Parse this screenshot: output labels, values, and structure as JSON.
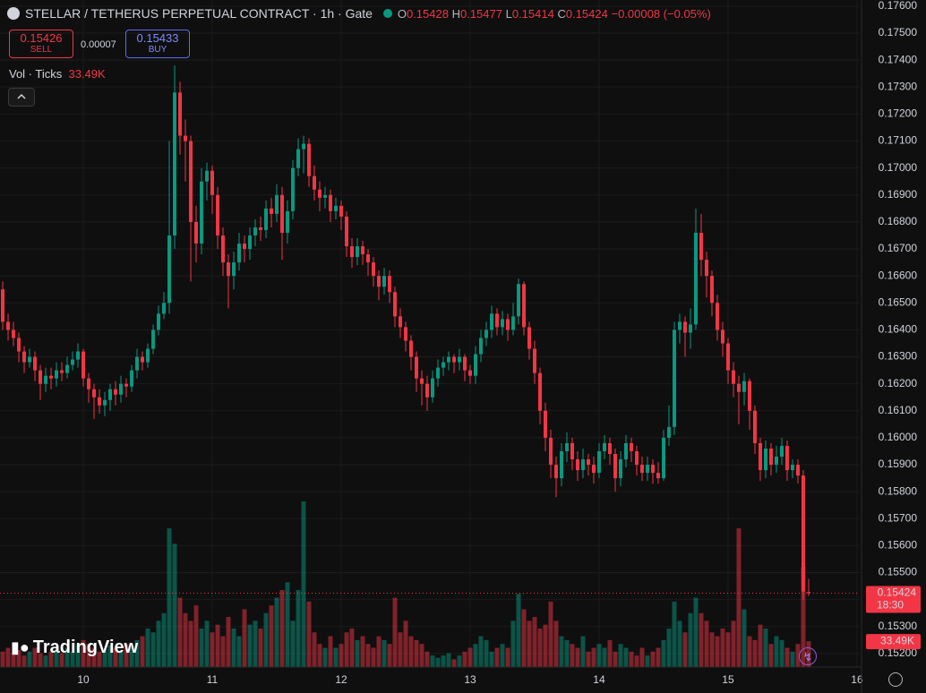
{
  "chart_data": {
    "type": "candlestick",
    "title": "STELLAR / TETHERUS PERPETUAL CONTRACT · 1h · Gate",
    "ohlc_labels": [
      "O",
      "H",
      "L",
      "C"
    ],
    "change": "−0.00008 (−0.05%)",
    "sell": {
      "price": "0.15426",
      "label": "SELL"
    },
    "spread": "0.00007",
    "buy": {
      "price": "0.15433",
      "label": "BUY"
    },
    "volume_legend": "Vol · Ticks",
    "volume_label": "33.49K",
    "countdown": "18:30",
    "logo": "TradingView",
    "up_color": "#089981",
    "down_color": "#f23645",
    "grid": true,
    "xlim": [
      9.354,
      16.021
    ],
    "xticks": [
      10,
      11,
      12,
      13,
      14,
      15,
      16
    ],
    "ylim": [
      0.1515,
      0.17623
    ],
    "yticks": [
      {
        "value": 0.152,
        "label": "0.15200"
      },
      {
        "value": 0.153,
        "label": "0.15300"
      },
      {
        "value": 0.154,
        "label": "0.15400"
      },
      {
        "value": 0.155,
        "label": "0.15500"
      },
      {
        "value": 0.156,
        "label": "0.15600"
      },
      {
        "value": 0.157,
        "label": "0.15700"
      },
      {
        "value": 0.158,
        "label": "0.15800"
      },
      {
        "value": 0.159,
        "label": "0.15900"
      },
      {
        "value": 0.16,
        "label": "0.16000"
      },
      {
        "value": 0.161,
        "label": "0.16100"
      },
      {
        "value": 0.162,
        "label": "0.16200"
      },
      {
        "value": 0.163,
        "label": "0.16300"
      },
      {
        "value": 0.164,
        "label": "0.16400"
      },
      {
        "value": 0.165,
        "label": "0.16500"
      },
      {
        "value": 0.166,
        "label": "0.16600"
      },
      {
        "value": 0.167,
        "label": "0.16700"
      },
      {
        "value": 0.168,
        "label": "0.16800"
      },
      {
        "value": 0.169,
        "label": "0.16900"
      },
      {
        "value": 0.17,
        "label": "0.17000"
      },
      {
        "value": 0.171,
        "label": "0.17100"
      },
      {
        "value": 0.172,
        "label": "0.17200"
      },
      {
        "value": 0.173,
        "label": "0.17300"
      },
      {
        "value": 0.174,
        "label": "0.17400"
      },
      {
        "value": 0.175,
        "label": "0.17500"
      },
      {
        "value": 0.176,
        "label": "0.17600"
      }
    ],
    "x": [
      9.375,
      9.4167,
      9.4583,
      9.5,
      9.5417,
      9.5833,
      9.625,
      9.6667,
      9.7083,
      9.75,
      9.7917,
      9.8333,
      9.875,
      9.9167,
      9.9583,
      10,
      10.0417,
      10.0833,
      10.125,
      10.1667,
      10.2083,
      10.25,
      10.2917,
      10.3333,
      10.375,
      10.4167,
      10.4583,
      10.5,
      10.5417,
      10.5833,
      10.625,
      10.6667,
      10.7083,
      10.75,
      10.7917,
      10.8333,
      10.875,
      10.9167,
      10.9583,
      11,
      11.0417,
      11.0833,
      11.125,
      11.1667,
      11.2083,
      11.25,
      11.2917,
      11.3333,
      11.375,
      11.4167,
      11.4583,
      11.5,
      11.5417,
      11.5833,
      11.625,
      11.6667,
      11.7083,
      11.75,
      11.7917,
      11.8333,
      11.875,
      11.9167,
      11.9583,
      12,
      12.0417,
      12.0833,
      12.125,
      12.1667,
      12.2083,
      12.25,
      12.2917,
      12.3333,
      12.375,
      12.4167,
      12.4583,
      12.5,
      12.5417,
      12.5833,
      12.625,
      12.6667,
      12.7083,
      12.75,
      12.7917,
      12.8333,
      12.875,
      12.9167,
      12.9583,
      13,
      13.0417,
      13.0833,
      13.125,
      13.1667,
      13.2083,
      13.25,
      13.2917,
      13.3333,
      13.375,
      13.4167,
      13.4583,
      13.5,
      13.5417,
      13.5833,
      13.625,
      13.6667,
      13.7083,
      13.75,
      13.7917,
      13.8333,
      13.875,
      13.9167,
      13.9583,
      14,
      14.0417,
      14.0833,
      14.125,
      14.1667,
      14.2083,
      14.25,
      14.2917,
      14.3333,
      14.375,
      14.4167,
      14.4583,
      14.5,
      14.5417,
      14.5833,
      14.625,
      14.6667,
      14.7083,
      14.75,
      14.7917,
      14.8333,
      14.875,
      14.9167,
      14.9583,
      15,
      15.0417,
      15.0833,
      15.125,
      15.1667,
      15.2083,
      15.25,
      15.2917,
      15.3333,
      15.375,
      15.4167,
      15.4583,
      15.5,
      15.5417,
      15.5833,
      15.625
    ],
    "open": [
      0.1655,
      0.1643,
      0.164,
      0.1637,
      0.1632,
      0.1628,
      0.163,
      0.1625,
      0.162,
      0.1623,
      0.1622,
      0.1625,
      0.1624,
      0.1627,
      0.1629,
      0.1632,
      0.1622,
      0.1618,
      0.1615,
      0.1612,
      0.1614,
      0.1618,
      0.1616,
      0.162,
      0.1619,
      0.1625,
      0.163,
      0.1628,
      0.1633,
      0.164,
      0.1646,
      0.165,
      0.1675,
      0.1728,
      0.1712,
      0.171,
      0.168,
      0.1672,
      0.1695,
      0.1699,
      0.169,
      0.1675,
      0.1665,
      0.166,
      0.1665,
      0.1672,
      0.167,
      0.1675,
      0.1678,
      0.1677,
      0.1685,
      0.1683,
      0.169,
      0.1676,
      0.1684,
      0.17,
      0.1707,
      0.1709,
      0.1697,
      0.1692,
      0.1689,
      0.169,
      0.1684,
      0.1686,
      0.1682,
      0.1671,
      0.1667,
      0.1671,
      0.1668,
      0.1665,
      0.166,
      0.1656,
      0.166,
      0.1654,
      0.1645,
      0.1641,
      0.1636,
      0.163,
      0.1622,
      0.162,
      0.1615,
      0.1622,
      0.1626,
      0.1628,
      0.163,
      0.1628,
      0.163,
      0.1625,
      0.1623,
      0.1631,
      0.1637,
      0.164,
      0.1646,
      0.1641,
      0.1644,
      0.164,
      0.1645,
      0.1657,
      0.1641,
      0.1633,
      0.1624,
      0.161,
      0.16,
      0.159,
      0.1585,
      0.1595,
      0.1598,
      0.1592,
      0.1588,
      0.1592,
      0.159,
      0.1587,
      0.1595,
      0.1598,
      0.1594,
      0.1585,
      0.1592,
      0.1598,
      0.1595,
      0.159,
      0.1587,
      0.159,
      0.1587,
      0.1585,
      0.16,
      0.1604,
      0.164,
      0.1643,
      0.1639,
      0.1642,
      0.1676,
      0.1666,
      0.166,
      0.165,
      0.164,
      0.1635,
      0.1625,
      0.162,
      0.1617,
      0.1621,
      0.161,
      0.1598,
      0.1588,
      0.1596,
      0.159,
      0.1593,
      0.1597,
      0.1588,
      0.159,
      0.1586,
      0.15428
    ],
    "high": [
      0.1658,
      0.1646,
      0.1643,
      0.1639,
      0.1634,
      0.1633,
      0.1632,
      0.1627,
      0.1626,
      0.1626,
      0.1628,
      0.1628,
      0.163,
      0.1632,
      0.1635,
      0.1633,
      0.1624,
      0.162,
      0.1618,
      0.1617,
      0.162,
      0.1621,
      0.1623,
      0.1622,
      0.1627,
      0.1633,
      0.1632,
      0.1635,
      0.1642,
      0.1649,
      0.1654,
      0.171,
      0.1738,
      0.1732,
      0.1718,
      0.1712,
      0.1686,
      0.17,
      0.1702,
      0.1701,
      0.1693,
      0.1678,
      0.1668,
      0.1669,
      0.1676,
      0.1675,
      0.1678,
      0.1681,
      0.1682,
      0.1688,
      0.1689,
      0.1694,
      0.1693,
      0.1688,
      0.1703,
      0.1711,
      0.1712,
      0.1711,
      0.1701,
      0.1695,
      0.1693,
      0.1692,
      0.1689,
      0.1688,
      0.1684,
      0.1674,
      0.1674,
      0.1673,
      0.167,
      0.1667,
      0.1662,
      0.1663,
      0.1662,
      0.1656,
      0.1648,
      0.1643,
      0.1638,
      0.1632,
      0.1625,
      0.1623,
      0.1625,
      0.1629,
      0.163,
      0.1632,
      0.1631,
      0.1633,
      0.1631,
      0.1627,
      0.1634,
      0.164,
      0.1643,
      0.1649,
      0.1648,
      0.1647,
      0.1646,
      0.165,
      0.1659,
      0.1658,
      0.1643,
      0.1636,
      0.1626,
      0.1613,
      0.1603,
      0.1593,
      0.1598,
      0.1602,
      0.16,
      0.1595,
      0.1596,
      0.1594,
      0.1593,
      0.1598,
      0.1601,
      0.16,
      0.1596,
      0.1595,
      0.1601,
      0.16,
      0.1597,
      0.1593,
      0.1593,
      0.1592,
      0.1591,
      0.1603,
      0.1612,
      0.1643,
      0.1646,
      0.1645,
      0.1648,
      0.1685,
      0.1683,
      0.1669,
      0.1662,
      0.1653,
      0.1643,
      0.1637,
      0.1628,
      0.1623,
      0.1624,
      0.1622,
      0.1612,
      0.16,
      0.1599,
      0.1598,
      0.1597,
      0.16,
      0.1599,
      0.1592,
      0.1592,
      0.1588,
      0.15477
    ],
    "low": [
      0.164,
      0.1636,
      0.1634,
      0.1628,
      0.1624,
      0.1626,
      0.1621,
      0.1614,
      0.1617,
      0.1618,
      0.1619,
      0.1621,
      0.1622,
      0.1625,
      0.1626,
      0.1619,
      0.1613,
      0.1607,
      0.1609,
      0.1608,
      0.161,
      0.1612,
      0.1613,
      0.1615,
      0.1617,
      0.1622,
      0.1625,
      0.1626,
      0.1631,
      0.1638,
      0.1644,
      0.1646,
      0.167,
      0.1705,
      0.1695,
      0.1658,
      0.1665,
      0.1668,
      0.1688,
      0.1683,
      0.167,
      0.166,
      0.1648,
      0.1655,
      0.1662,
      0.1665,
      0.1666,
      0.1671,
      0.1673,
      0.1674,
      0.1678,
      0.168,
      0.1666,
      0.1672,
      0.1681,
      0.1697,
      0.1698,
      0.1693,
      0.1688,
      0.1684,
      0.1685,
      0.168,
      0.1681,
      0.1677,
      0.1667,
      0.1663,
      0.1664,
      0.1664,
      0.166,
      0.1656,
      0.1651,
      0.1653,
      0.165,
      0.1641,
      0.1637,
      0.1632,
      0.1625,
      0.1617,
      0.1612,
      0.161,
      0.1613,
      0.1619,
      0.1623,
      0.1625,
      0.1624,
      0.1625,
      0.1621,
      0.162,
      0.162,
      0.1628,
      0.1634,
      0.1637,
      0.1638,
      0.1638,
      0.1636,
      0.1638,
      0.1642,
      0.1638,
      0.1629,
      0.162,
      0.1605,
      0.1595,
      0.1585,
      0.1578,
      0.1582,
      0.1591,
      0.1588,
      0.1584,
      0.1585,
      0.1586,
      0.1583,
      0.1585,
      0.1592,
      0.159,
      0.158,
      0.1582,
      0.1589,
      0.1591,
      0.1586,
      0.1584,
      0.1584,
      0.1583,
      0.1583,
      0.1584,
      0.1597,
      0.1601,
      0.1635,
      0.163,
      0.1633,
      0.164,
      0.166,
      0.1652,
      0.1645,
      0.1636,
      0.163,
      0.162,
      0.1615,
      0.1605,
      0.1612,
      0.1603,
      0.1594,
      0.1584,
      0.1585,
      0.1586,
      0.1587,
      0.159,
      0.1584,
      0.1585,
      0.1583,
      0.154,
      0.15414
    ],
    "close": [
      0.1643,
      0.164,
      0.1637,
      0.1632,
      0.1628,
      0.163,
      0.1625,
      0.162,
      0.1623,
      0.1622,
      0.1625,
      0.1624,
      0.1627,
      0.1629,
      0.1632,
      0.1622,
      0.1618,
      0.1615,
      0.1612,
      0.1614,
      0.1618,
      0.1616,
      0.162,
      0.1619,
      0.1625,
      0.163,
      0.1628,
      0.1633,
      0.164,
      0.1646,
      0.165,
      0.1675,
      0.1728,
      0.1712,
      0.171,
      0.168,
      0.1672,
      0.1695,
      0.1699,
      0.169,
      0.1675,
      0.1665,
      0.166,
      0.1665,
      0.1672,
      0.167,
      0.1675,
      0.1678,
      0.1677,
      0.1685,
      0.1683,
      0.169,
      0.1676,
      0.1684,
      0.17,
      0.1707,
      0.1709,
      0.1697,
      0.1692,
      0.1689,
      0.169,
      0.1684,
      0.1686,
      0.1682,
      0.1671,
      0.1667,
      0.1671,
      0.1668,
      0.1665,
      0.166,
      0.1656,
      0.166,
      0.1654,
      0.1645,
      0.1641,
      0.1636,
      0.163,
      0.1622,
      0.162,
      0.1615,
      0.1622,
      0.1626,
      0.1628,
      0.163,
      0.1628,
      0.163,
      0.1625,
      0.1623,
      0.1631,
      0.1637,
      0.164,
      0.1646,
      0.1641,
      0.1644,
      0.164,
      0.1645,
      0.1657,
      0.1641,
      0.1633,
      0.1624,
      0.161,
      0.16,
      0.159,
      0.1585,
      0.1595,
      0.1598,
      0.1592,
      0.1588,
      0.1592,
      0.159,
      0.1587,
      0.1595,
      0.1598,
      0.1594,
      0.1585,
      0.1592,
      0.1598,
      0.1595,
      0.159,
      0.1587,
      0.159,
      0.1587,
      0.1585,
      0.16,
      0.1604,
      0.164,
      0.1643,
      0.1639,
      0.1642,
      0.1676,
      0.1666,
      0.166,
      0.165,
      0.164,
      0.1635,
      0.1625,
      0.162,
      0.1617,
      0.1621,
      0.161,
      0.1598,
      0.1588,
      0.1596,
      0.159,
      0.1593,
      0.1597,
      0.1588,
      0.159,
      0.1586,
      0.1543,
      0.15424
    ],
    "volume": [
      20000,
      25000,
      18000,
      22000,
      15000,
      20000,
      25000,
      18000,
      15000,
      20000,
      22000,
      18000,
      25000,
      20000,
      30000,
      35000,
      30000,
      25000,
      20000,
      22000,
      28000,
      25000,
      20000,
      30000,
      28000,
      35000,
      40000,
      50000,
      45000,
      60000,
      70000,
      180000,
      160000,
      90000,
      70000,
      60000,
      80000,
      50000,
      60000,
      45000,
      55000,
      40000,
      65000,
      50000,
      40000,
      75000,
      55000,
      60000,
      50000,
      70000,
      80000,
      90000,
      100000,
      110000,
      60000,
      100000,
      215000,
      85000,
      45000,
      30000,
      25000,
      40000,
      25000,
      30000,
      45000,
      50000,
      35000,
      40000,
      30000,
      25000,
      40000,
      35000,
      30000,
      90000,
      45000,
      60000,
      40000,
      35000,
      30000,
      20000,
      15000,
      12000,
      15000,
      18000,
      10000,
      15000,
      20000,
      25000,
      30000,
      40000,
      35000,
      20000,
      25000,
      30000,
      25000,
      60000,
      95000,
      75000,
      60000,
      65000,
      50000,
      55000,
      85000,
      60000,
      40000,
      35000,
      30000,
      25000,
      40000,
      20000,
      25000,
      30000,
      25000,
      35000,
      20000,
      30000,
      25000,
      20000,
      15000,
      25000,
      15000,
      20000,
      25000,
      35000,
      50000,
      85000,
      60000,
      45000,
      70000,
      90000,
      70000,
      60000,
      45000,
      40000,
      50000,
      45000,
      60000,
      180000,
      75000,
      40000,
      35000,
      55000,
      50000,
      30000,
      40000,
      35000,
      25000,
      20000,
      30000,
      130000,
      33490
    ]
  }
}
